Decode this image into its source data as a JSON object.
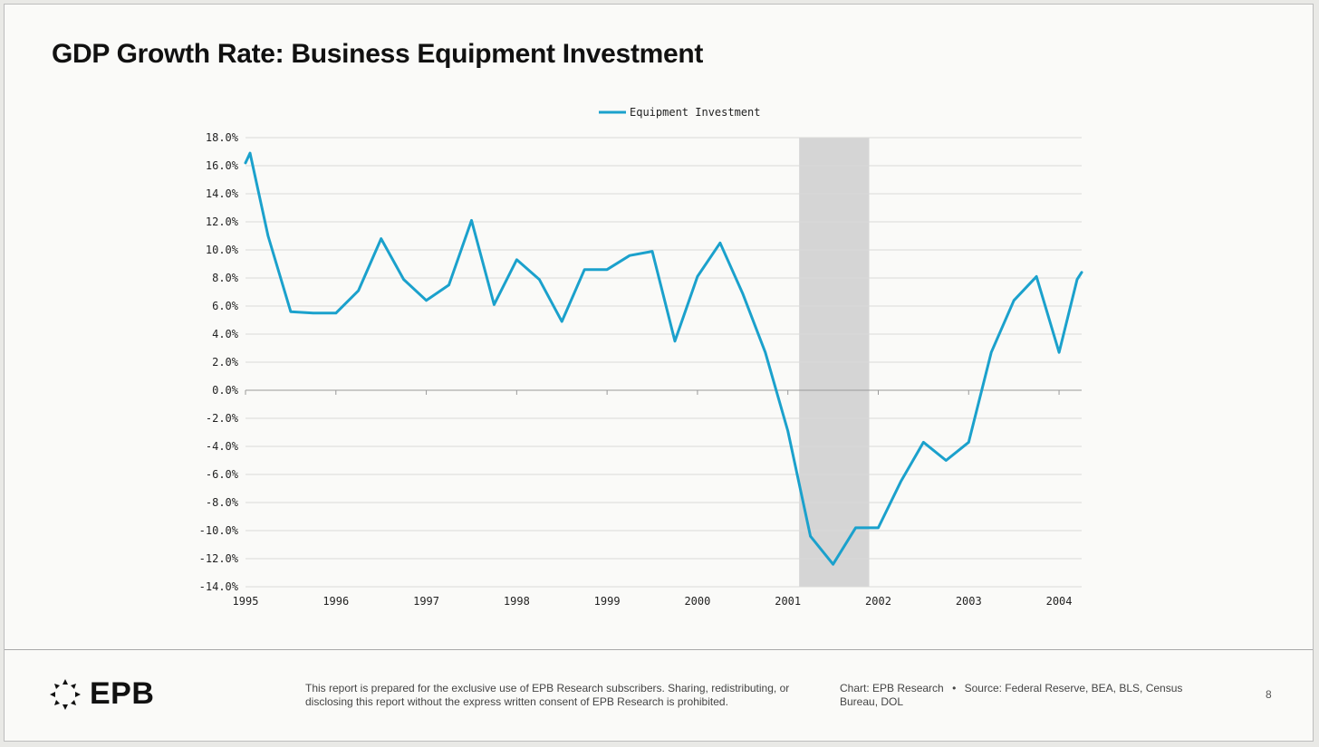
{
  "page": {
    "title": "GDP Growth Rate: Business Equipment Investment",
    "logo_text": "EPB",
    "disclaimer": "This report is prepared for the exclusive use of EPB Research subscribers. Sharing, redistributing, or disclosing this report without the express written consent of EPB Research is prohibited.",
    "chart_credit": "Chart: EPB Research",
    "source_separator": "•",
    "source": "Source: Federal Reserve, BEA, BLS, Census Bureau, DOL",
    "page_number": "8"
  },
  "colors": {
    "series": "#1ba1cc",
    "recession": "#d5d5d5",
    "grid": "#d9d9d9",
    "axis": "#999999",
    "text": "#222222"
  },
  "chart_data": {
    "type": "line",
    "title": "GDP Growth Rate: Business Equipment Investment",
    "xlabel": "",
    "ylabel": "",
    "legend": "top-center",
    "grid": true,
    "xlim": [
      1995.0,
      2004.25
    ],
    "ylim": [
      -14.0,
      18.0
    ],
    "ytick_step": 2,
    "x_ticks": [
      1995,
      1996,
      1997,
      1998,
      1999,
      2000,
      2001,
      2002,
      2003,
      2004
    ],
    "y_ticks": [
      "18.0%",
      "16.0%",
      "14.0%",
      "12.0%",
      "10.0%",
      "8.0%",
      "6.0%",
      "4.0%",
      "2.0%",
      "0.0%",
      "-2.0%",
      "-4.0%",
      "-6.0%",
      "-8.0%",
      "-10.0%",
      "-12.0%",
      "-14.0%"
    ],
    "recession": [
      2001.125,
      2001.9
    ],
    "series": [
      {
        "name": "Equipment Investment",
        "x": [
          1995.0,
          1995.05,
          1995.25,
          1995.5,
          1995.75,
          1996.0,
          1996.25,
          1996.5,
          1996.75,
          1997.0,
          1997.25,
          1997.5,
          1997.75,
          1998.0,
          1998.25,
          1998.5,
          1998.75,
          1999.0,
          1999.25,
          1999.5,
          1999.75,
          2000.0,
          2000.25,
          2000.5,
          2000.75,
          2001.0,
          2001.25,
          2001.5,
          2001.75,
          2002.0,
          2002.25,
          2002.5,
          2002.75,
          2003.0,
          2003.25,
          2003.5,
          2003.75,
          2004.0,
          2004.2,
          2004.25
        ],
        "values": [
          16.2,
          16.9,
          11.0,
          5.6,
          5.5,
          5.5,
          7.1,
          10.8,
          7.9,
          6.4,
          7.5,
          12.1,
          6.1,
          9.3,
          7.9,
          4.9,
          8.6,
          8.6,
          9.6,
          9.9,
          3.5,
          8.1,
          10.5,
          6.9,
          2.7,
          -2.9,
          -10.4,
          -12.4,
          -9.8,
          -9.8,
          -6.5,
          -3.7,
          -5.0,
          -3.7,
          2.7,
          6.4,
          8.1,
          2.7,
          7.9,
          8.4
        ]
      }
    ]
  }
}
